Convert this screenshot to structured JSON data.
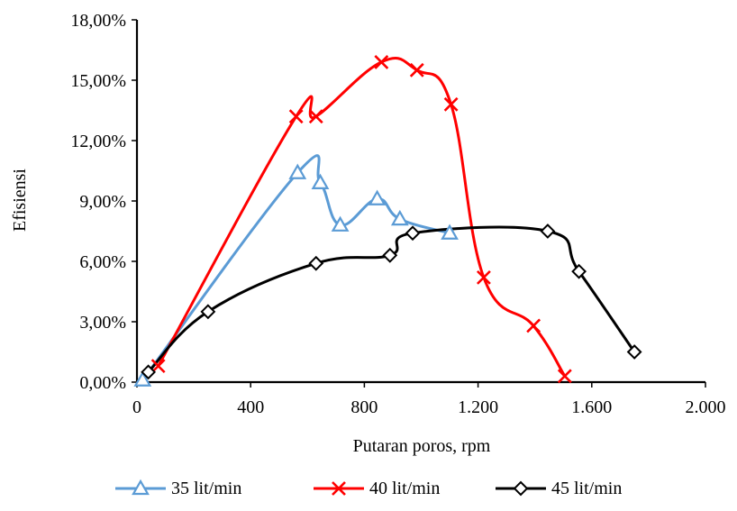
{
  "chart_data": {
    "type": "scatter",
    "title": "",
    "xlabel": "Putaran poros, rpm",
    "ylabel": "Efisiensi",
    "xlim": [
      0,
      2000
    ],
    "ylim": [
      0,
      18
    ],
    "x_ticks": [
      0,
      400,
      800,
      1200,
      1600,
      2000
    ],
    "x_tick_labels": [
      "0",
      "400",
      "800",
      "1.200",
      "1.600",
      "2.000"
    ],
    "y_ticks": [
      0,
      3,
      6,
      9,
      12,
      15,
      18
    ],
    "y_tick_labels": [
      "0,00%",
      "3,00%",
      "6,00%",
      "9,00%",
      "12,00%",
      "15,00%",
      "18,00%"
    ],
    "grid": false,
    "legend_position": "bottom",
    "series": [
      {
        "name": "35 lit/min",
        "color": "#5b9bd5",
        "marker": "triangle",
        "x": [
          20,
          565,
          645,
          715,
          845,
          925,
          1100
        ],
        "y": [
          0.1,
          10.4,
          9.9,
          7.8,
          9.1,
          8.1,
          7.4
        ]
      },
      {
        "name": "40 lit/min",
        "color": "#ff0000",
        "marker": "x",
        "x": [
          75,
          560,
          630,
          860,
          985,
          1105,
          1220,
          1395,
          1505
        ],
        "y": [
          0.8,
          13.2,
          13.2,
          15.9,
          15.5,
          13.8,
          5.2,
          2.8,
          0.3
        ]
      },
      {
        "name": "45 lit/min",
        "color": "#000000",
        "marker": "diamond",
        "x": [
          40,
          250,
          630,
          890,
          970,
          1445,
          1555,
          1750
        ],
        "y": [
          0.5,
          3.5,
          5.9,
          6.3,
          7.4,
          7.5,
          5.5,
          1.5
        ]
      }
    ]
  }
}
